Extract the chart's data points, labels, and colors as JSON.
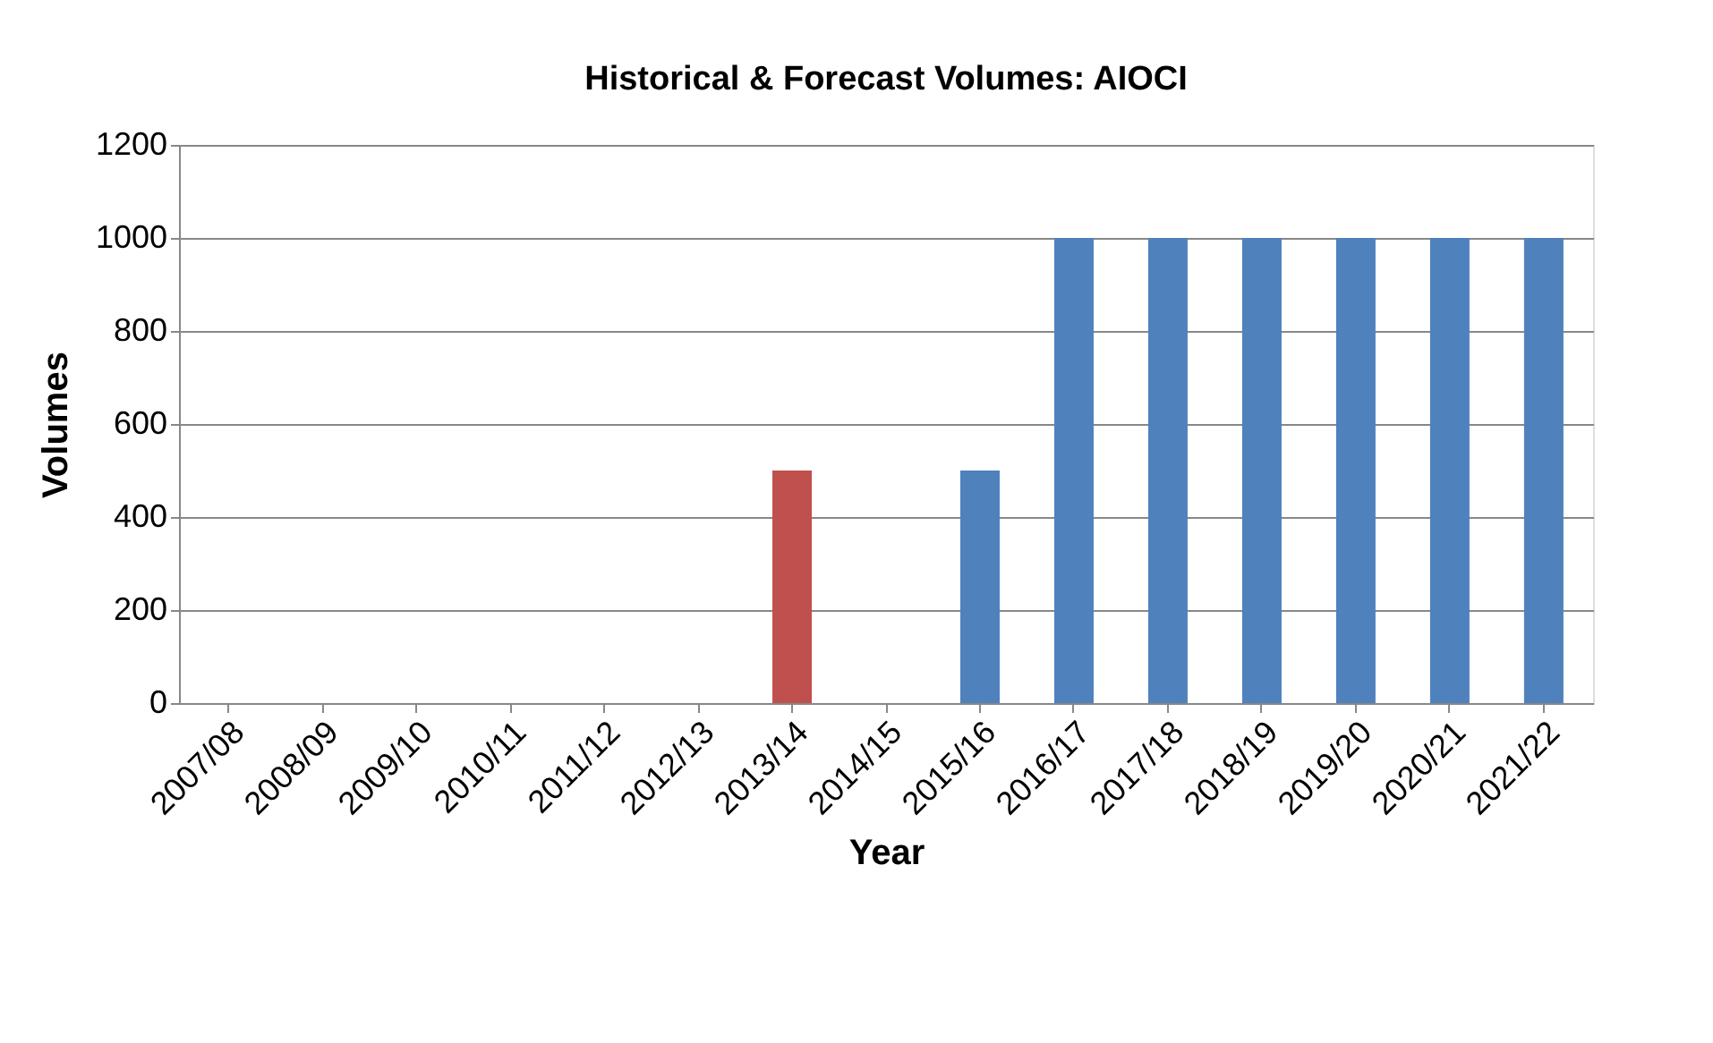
{
  "chart_data": {
    "type": "bar",
    "title": "Historical & Forecast Volumes: AIOCI",
    "xlabel": "Year",
    "ylabel": "Volumes",
    "categories": [
      "2007/08",
      "2008/09",
      "2009/10",
      "2010/11",
      "2011/12",
      "2012/13",
      "2013/14",
      "2014/15",
      "2015/16",
      "2016/17",
      "2017/18",
      "2018/19",
      "2019/20",
      "2020/21",
      "2021/22"
    ],
    "values": [
      null,
      null,
      null,
      null,
      null,
      null,
      500,
      null,
      500,
      1000,
      1000,
      1000,
      1000,
      1000,
      1000
    ],
    "colors": [
      "#4f81bd",
      "#4f81bd",
      "#4f81bd",
      "#4f81bd",
      "#4f81bd",
      "#4f81bd",
      "#c0504d",
      "#4f81bd",
      "#4f81bd",
      "#4f81bd",
      "#4f81bd",
      "#4f81bd",
      "#4f81bd",
      "#4f81bd",
      "#4f81bd"
    ],
    "ylim": [
      0,
      1200
    ],
    "yticks": [
      0,
      200,
      400,
      600,
      800,
      1000,
      1200
    ],
    "grid": "y"
  }
}
